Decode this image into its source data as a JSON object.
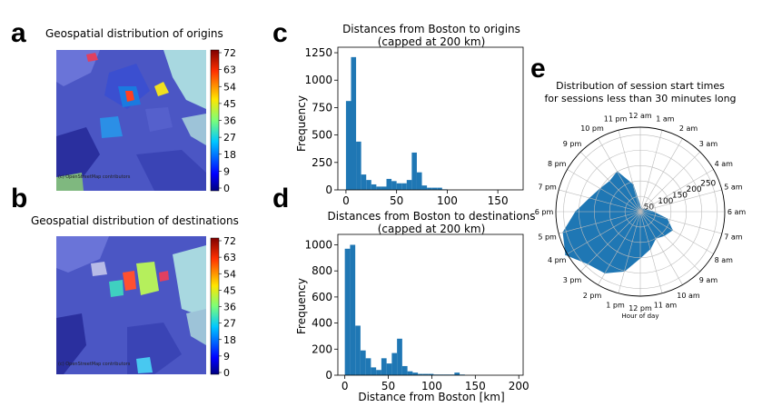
{
  "panel_letters": {
    "a": "a",
    "b": "b",
    "c": "c",
    "d": "d",
    "e": "e"
  },
  "map_a": {
    "title": "Geospatial distribution of origins"
  },
  "map_b": {
    "title": "Geospatial distribution of destinations"
  },
  "map_attribution": "(c) OpenStreetMap contributors",
  "colorbar": {
    "ticks": [
      "72",
      "63",
      "54",
      "45",
      "36",
      "27",
      "18",
      "9",
      "0"
    ]
  },
  "chart_data": [
    {
      "type": "bar",
      "panel": "c",
      "title": "Distances from Boston to origins",
      "subtitle": "(capped at 200 km)",
      "xlabel": "",
      "ylabel": "Frequency",
      "xlim": [
        -8,
        175
      ],
      "ylim": [
        0,
        1300
      ],
      "xticks": [
        "0",
        "50",
        "100",
        "150"
      ],
      "yticks": [
        "0",
        "250",
        "500",
        "750",
        "1000",
        "1250"
      ],
      "bin_width": 5,
      "bin_starts": [
        0,
        5,
        10,
        15,
        20,
        25,
        30,
        35,
        40,
        45,
        50,
        55,
        60,
        65,
        70,
        75,
        80,
        85,
        90,
        95
      ],
      "values": [
        810,
        1210,
        440,
        140,
        90,
        50,
        30,
        30,
        100,
        80,
        60,
        60,
        90,
        340,
        160,
        40,
        20,
        20,
        20,
        5
      ]
    },
    {
      "type": "bar",
      "panel": "d",
      "title": "Distances from Boston to destinations",
      "subtitle": "(capped at 200 km)",
      "xlabel": "Distance from Boston [km]",
      "ylabel": "Frequency",
      "xlim": [
        -8,
        205
      ],
      "ylim": [
        0,
        1080
      ],
      "xticks": [
        "0",
        "50",
        "100",
        "150",
        "200"
      ],
      "yticks": [
        "0",
        "200",
        "400",
        "600",
        "800",
        "1000"
      ],
      "bin_width": 6,
      "bin_starts": [
        0,
        6,
        12,
        18,
        24,
        30,
        36,
        42,
        48,
        54,
        60,
        66,
        72,
        78,
        84,
        90,
        96,
        102,
        108,
        114,
        120,
        126,
        132
      ],
      "values": [
        970,
        1000,
        380,
        190,
        130,
        60,
        40,
        130,
        90,
        170,
        280,
        70,
        30,
        20,
        10,
        10,
        10,
        5,
        5,
        5,
        5,
        20,
        5
      ]
    },
    {
      "type": "area",
      "subtype": "polar",
      "panel": "e",
      "title": "Distribution of session start times",
      "subtitle": "for sessions less than 30 minutes long",
      "xlabel": "Hour of day",
      "hour_labels": [
        "12 am",
        "1 am",
        "2 am",
        "3 am",
        "4 am",
        "5 am",
        "6 am",
        "7 am",
        "8 am",
        "9 am",
        "10 am",
        "11 am",
        "12 pm",
        "1 pm",
        "2 pm",
        "3 pm",
        "4 pm",
        "5 pm",
        "6 pm",
        "7 pm",
        "8 pm",
        "9 pm",
        "10 pm",
        "11 pm"
      ],
      "radial_ticks": [
        "50",
        "100",
        "150",
        "200",
        "250"
      ],
      "rlim": [
        0,
        275
      ],
      "values": [
        15,
        10,
        10,
        10,
        15,
        20,
        40,
        90,
        120,
        110,
        100,
        125,
        150,
        200,
        230,
        240,
        280,
        260,
        210,
        170,
        150,
        140,
        150,
        90
      ]
    }
  ]
}
